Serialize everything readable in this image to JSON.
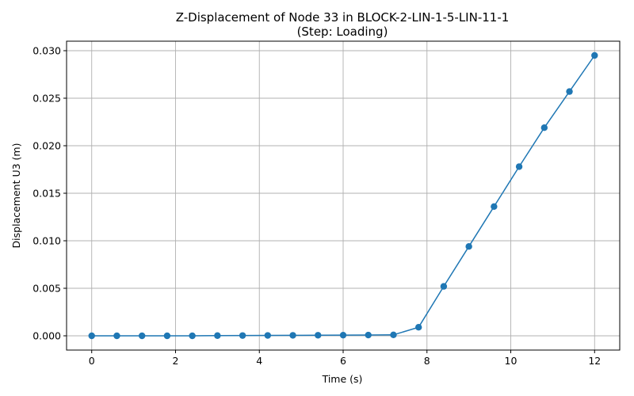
{
  "chart_data": {
    "type": "line",
    "title": [
      "Z-Displacement of Node 33 in BLOCK-2-LIN-1-5-LIN-11-1",
      "(Step: Loading)"
    ],
    "xlabel": "Time (s)",
    "ylabel": "Displacement U3 (m)",
    "xlim": [
      -0.6,
      12.6
    ],
    "ylim": [
      -0.0015,
      0.031
    ],
    "xticks": [
      0,
      2,
      4,
      6,
      8,
      10,
      12
    ],
    "xtick_labels": [
      "0",
      "2",
      "4",
      "6",
      "8",
      "10",
      "12"
    ],
    "yticks": [
      0.0,
      0.005,
      0.01,
      0.015,
      0.02,
      0.025,
      0.03
    ],
    "ytick_labels": [
      "0.000",
      "0.005",
      "0.010",
      "0.015",
      "0.020",
      "0.025",
      "0.030"
    ],
    "grid": true,
    "color": "#1f77b4",
    "series": [
      {
        "x": [
          0,
          0.6,
          1.2,
          1.8,
          2.4,
          3.0,
          3.6,
          4.2,
          4.8,
          5.4,
          6.0,
          6.6,
          7.2,
          7.8,
          8.4,
          9.0,
          9.6,
          10.2,
          10.8,
          11.4,
          12.0
        ],
        "y": [
          0.0,
          0.0,
          0.0,
          0.0,
          0.0,
          2e-05,
          3e-05,
          4e-05,
          5e-05,
          6e-05,
          7e-05,
          8e-05,
          0.0001,
          0.0009,
          0.0052,
          0.0094,
          0.0136,
          0.0178,
          0.0219,
          0.0257,
          0.0295
        ]
      }
    ]
  }
}
